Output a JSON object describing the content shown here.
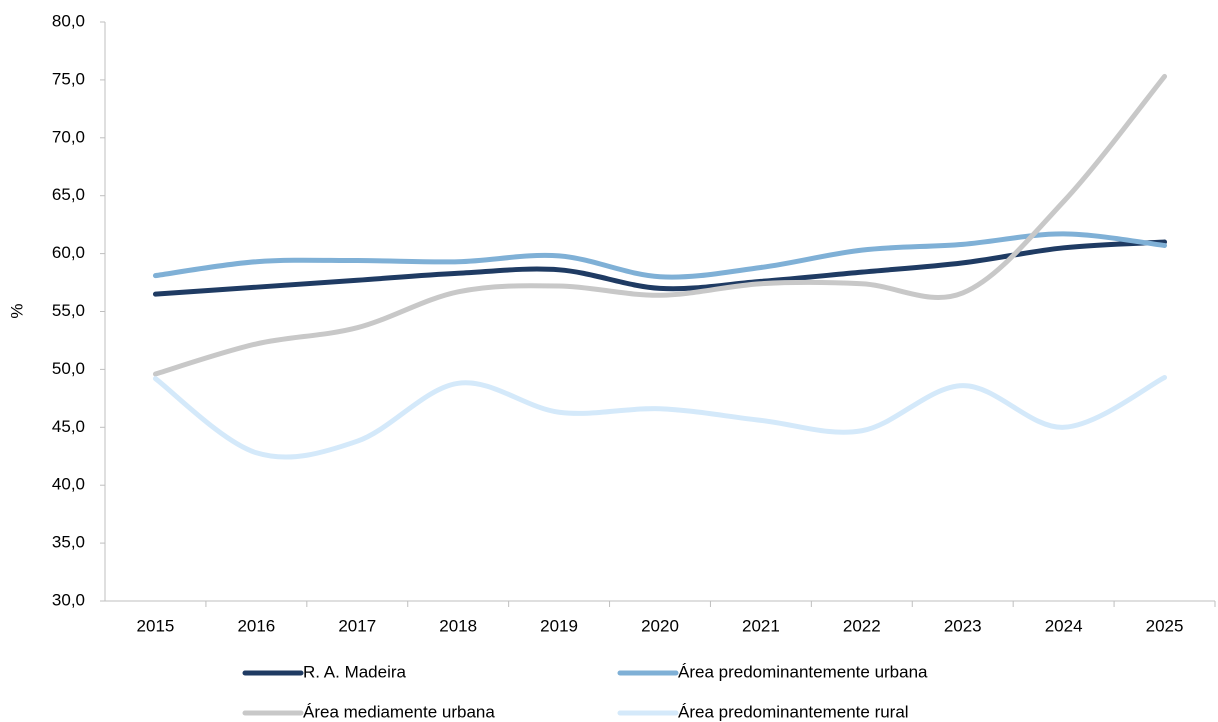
{
  "chart_data": {
    "type": "line",
    "y_label": "%",
    "categories": [
      "2015",
      "2016",
      "2017",
      "2018",
      "2019",
      "2020",
      "2021",
      "2022",
      "2023",
      "2024",
      "2025"
    ],
    "series": [
      {
        "name": "R. A. Madeira",
        "color": "#1f3b63",
        "values": [
          56.5,
          57.1,
          57.7,
          58.3,
          58.6,
          57.0,
          57.6,
          58.4,
          59.2,
          60.5,
          61.0
        ]
      },
      {
        "name": "Área predominantemente urbana",
        "color": "#7fb0d6",
        "values": [
          58.1,
          59.3,
          59.4,
          59.3,
          59.8,
          58.0,
          58.8,
          60.3,
          60.8,
          61.7,
          60.7
        ]
      },
      {
        "name": "Área mediamente urbana",
        "color": "#c8c8c8",
        "values": [
          49.6,
          52.2,
          53.6,
          56.7,
          57.2,
          56.4,
          57.4,
          57.4,
          56.6,
          64.5,
          75.3
        ]
      },
      {
        "name": "Área predominantemente rural",
        "color": "#d4e9fa",
        "values": [
          49.2,
          42.8,
          43.8,
          48.8,
          46.3,
          46.6,
          45.6,
          44.7,
          48.6,
          45.0,
          49.3
        ]
      }
    ],
    "ylim": [
      30,
      80
    ],
    "yticks": [
      {
        "value": 30,
        "label": "30,0"
      },
      {
        "value": 35,
        "label": "35,0"
      },
      {
        "value": 40,
        "label": "40,0"
      },
      {
        "value": 45,
        "label": "45,0"
      },
      {
        "value": 50,
        "label": "50,0"
      },
      {
        "value": 55,
        "label": "55,0"
      },
      {
        "value": 60,
        "label": "60,0"
      },
      {
        "value": 65,
        "label": "65,0"
      },
      {
        "value": 70,
        "label": "70,0"
      },
      {
        "value": 75,
        "label": "75,0"
      },
      {
        "value": 80,
        "label": "80,0"
      }
    ],
    "grid": false,
    "legend": "bottom"
  }
}
